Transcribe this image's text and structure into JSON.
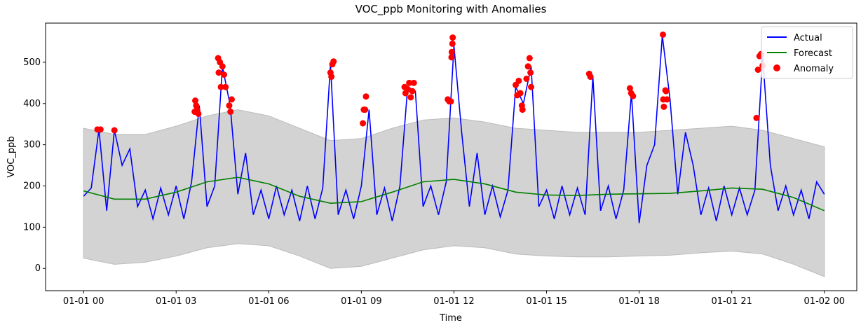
{
  "chart_data": {
    "type": "line",
    "title": "VOC_ppb Monitoring with Anomalies",
    "x_label": "Time",
    "y_label": "VOC_ppb",
    "xlim": [
      -1.23,
      25.05
    ],
    "ylim": [
      -54,
      595
    ],
    "xticks": [
      {
        "value": 0,
        "label": "01-01 00"
      },
      {
        "value": 3,
        "label": "01-01 03"
      },
      {
        "value": 6,
        "label": "01-01 06"
      },
      {
        "value": 9,
        "label": "01-01 09"
      },
      {
        "value": 12,
        "label": "01-01 12"
      },
      {
        "value": 15,
        "label": "01-01 15"
      },
      {
        "value": 18,
        "label": "01-01 18"
      },
      {
        "value": 21,
        "label": "01-01 21"
      },
      {
        "value": 24,
        "label": "01-02 00"
      }
    ],
    "yticks": [
      0,
      100,
      200,
      300,
      400,
      500
    ],
    "legend": "upper right",
    "band": {
      "color": "#d3d3d3",
      "x": [
        0,
        1,
        2,
        3,
        4,
        5,
        6,
        7,
        8,
        9,
        10,
        11,
        12,
        13,
        14,
        15,
        16,
        17,
        18,
        19,
        20,
        21,
        22,
        23,
        24
      ],
      "lower": [
        25,
        10,
        15,
        30,
        50,
        60,
        55,
        30,
        0,
        5,
        25,
        45,
        55,
        50,
        35,
        30,
        28,
        28,
        30,
        32,
        38,
        42,
        35,
        10,
        -20
      ],
      "upper": [
        340,
        325,
        325,
        345,
        370,
        385,
        370,
        340,
        310,
        315,
        340,
        360,
        365,
        355,
        340,
        335,
        330,
        330,
        330,
        335,
        340,
        345,
        335,
        315,
        295
      ]
    },
    "series": [
      {
        "name": "Actual",
        "color": "#0000ff",
        "type": "line",
        "x": [
          0,
          0.25,
          0.5,
          0.75,
          1,
          1.25,
          1.5,
          1.75,
          2,
          2.25,
          2.5,
          2.75,
          3,
          3.25,
          3.5,
          3.75,
          4,
          4.25,
          4.5,
          4.75,
          5,
          5.25,
          5.5,
          5.75,
          6,
          6.25,
          6.5,
          6.75,
          7,
          7.25,
          7.5,
          7.75,
          8,
          8.25,
          8.5,
          8.75,
          9,
          9.25,
          9.5,
          9.75,
          10,
          10.25,
          10.5,
          10.75,
          11,
          11.25,
          11.5,
          11.75,
          12,
          12.25,
          12.5,
          12.75,
          13,
          13.25,
          13.5,
          13.75,
          14,
          14.25,
          14.5,
          14.75,
          15,
          15.25,
          15.5,
          15.75,
          16,
          16.25,
          16.5,
          16.75,
          17,
          17.25,
          17.5,
          17.75,
          18,
          18.25,
          18.5,
          18.75,
          19,
          19.25,
          19.5,
          19.75,
          20,
          20.25,
          20.5,
          20.75,
          21,
          21.25,
          21.5,
          21.75,
          22,
          22.25,
          22.5,
          22.75,
          23,
          23.25,
          23.5,
          23.75,
          24
        ],
        "values": [
          175,
          195,
          337,
          140,
          335,
          250,
          290,
          150,
          190,
          120,
          195,
          130,
          200,
          120,
          210,
          395,
          150,
          200,
          490,
          395,
          180,
          280,
          130,
          190,
          120,
          200,
          130,
          190,
          115,
          200,
          120,
          195,
          495,
          130,
          190,
          120,
          200,
          385,
          130,
          195,
          115,
          200,
          440,
          430,
          150,
          200,
          130,
          210,
          540,
          330,
          150,
          280,
          130,
          200,
          125,
          190,
          440,
          400,
          490,
          150,
          190,
          120,
          200,
          130,
          195,
          130,
          465,
          140,
          200,
          120,
          190,
          425,
          110,
          250,
          300,
          565,
          410,
          180,
          330,
          250,
          130,
          195,
          115,
          200,
          130,
          195,
          130,
          190,
          515,
          250,
          140,
          200,
          130,
          190,
          120,
          210,
          180
        ]
      },
      {
        "name": "Forecast",
        "color": "#008000",
        "type": "line",
        "x": [
          0,
          1,
          2,
          3,
          4,
          5,
          6,
          7,
          8,
          9,
          10,
          11,
          12,
          13,
          14,
          15,
          16,
          17,
          18,
          19,
          20,
          21,
          22,
          23,
          24
        ],
        "values": [
          188,
          168,
          168,
          185,
          210,
          221,
          205,
          175,
          158,
          162,
          185,
          210,
          216,
          205,
          185,
          178,
          177,
          180,
          181,
          182,
          188,
          195,
          192,
          172,
          140
        ]
      },
      {
        "name": "Anomaly",
        "color": "#ff0000",
        "type": "scatter",
        "x": [
          0.45,
          0.55,
          1.0,
          3.6,
          3.62,
          3.65,
          3.68,
          3.72,
          4.36,
          4.38,
          4.42,
          4.45,
          4.5,
          4.55,
          4.6,
          4.72,
          4.76,
          4.8,
          8.0,
          8.03,
          8.06,
          8.1,
          9.05,
          9.08,
          9.12,
          9.15,
          10.4,
          10.43,
          10.5,
          10.55,
          10.6,
          10.65,
          10.7,
          11.8,
          11.85,
          11.9,
          11.92,
          11.93,
          11.95,
          11.96,
          14.0,
          14.05,
          14.1,
          14.15,
          14.2,
          14.22,
          14.35,
          14.4,
          14.45,
          14.48,
          14.5,
          16.38,
          16.42,
          17.7,
          17.74,
          17.8,
          18.77,
          18.78,
          18.8,
          18.85,
          18.87,
          18.9,
          21.8,
          21.85,
          21.9,
          21.95,
          22.0
        ],
        "values": [
          337,
          337,
          335,
          380,
          407,
          395,
          385,
          375,
          510,
          475,
          500,
          440,
          490,
          470,
          440,
          395,
          380,
          410,
          475,
          465,
          495,
          502,
          352,
          385,
          385,
          417,
          440,
          425,
          435,
          450,
          415,
          430,
          450,
          410,
          405,
          405,
          512,
          525,
          545,
          560,
          445,
          420,
          455,
          425,
          395,
          385,
          460,
          490,
          510,
          475,
          440,
          472,
          465,
          437,
          425,
          418,
          567,
          410,
          392,
          432,
          430,
          410,
          365,
          482,
          515,
          520,
          492
        ]
      }
    ]
  }
}
